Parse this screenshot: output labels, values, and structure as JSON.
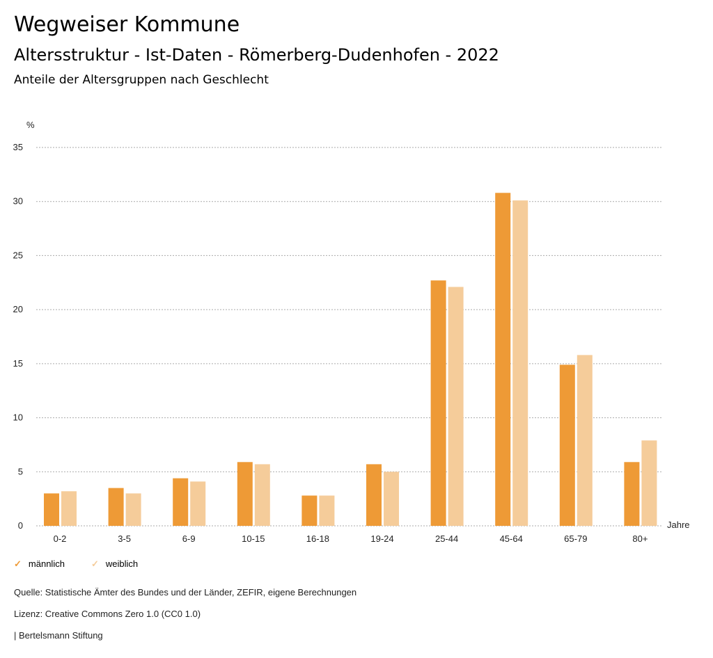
{
  "header": {
    "title": "Wegweiser Kommune",
    "subtitle": "Altersstruktur - Ist-Daten - Römerberg-Dudenhofen - 2022",
    "chart_title": "Anteile der Altersgruppen nach Geschlecht"
  },
  "colors": {
    "maennlich": "#ee9a36",
    "weiblich": "#f5cc9a"
  },
  "chart_data": {
    "type": "bar",
    "title": "Anteile der Altersgruppen nach Geschlecht",
    "xlabel": "Jahre",
    "ylabel": "%",
    "ylim": [
      0,
      35
    ],
    "yticks": [
      "0",
      "5",
      "10",
      "15",
      "20",
      "25",
      "30",
      "35"
    ],
    "categories": [
      "0-2",
      "3-5",
      "6-9",
      "10-15",
      "16-18",
      "19-24",
      "25-44",
      "45-64",
      "65-79",
      "80+"
    ],
    "series": [
      {
        "name": "männlich",
        "values": [
          3.0,
          3.5,
          4.4,
          5.9,
          2.8,
          5.7,
          22.7,
          30.8,
          14.9,
          5.9
        ]
      },
      {
        "name": "weiblich",
        "values": [
          3.2,
          3.0,
          4.1,
          5.7,
          2.8,
          5.0,
          22.1,
          30.1,
          15.8,
          7.9
        ]
      }
    ],
    "grid": true,
    "legend": "bottom-left"
  },
  "footer": {
    "source": "Quelle: Statistische Ämter des Bundes und der Länder, ZEFIR, eigene Berechnungen",
    "license": "Lizenz: Creative Commons Zero 1.0 (CC0 1.0)",
    "brand": "| Bertelsmann Stiftung"
  }
}
